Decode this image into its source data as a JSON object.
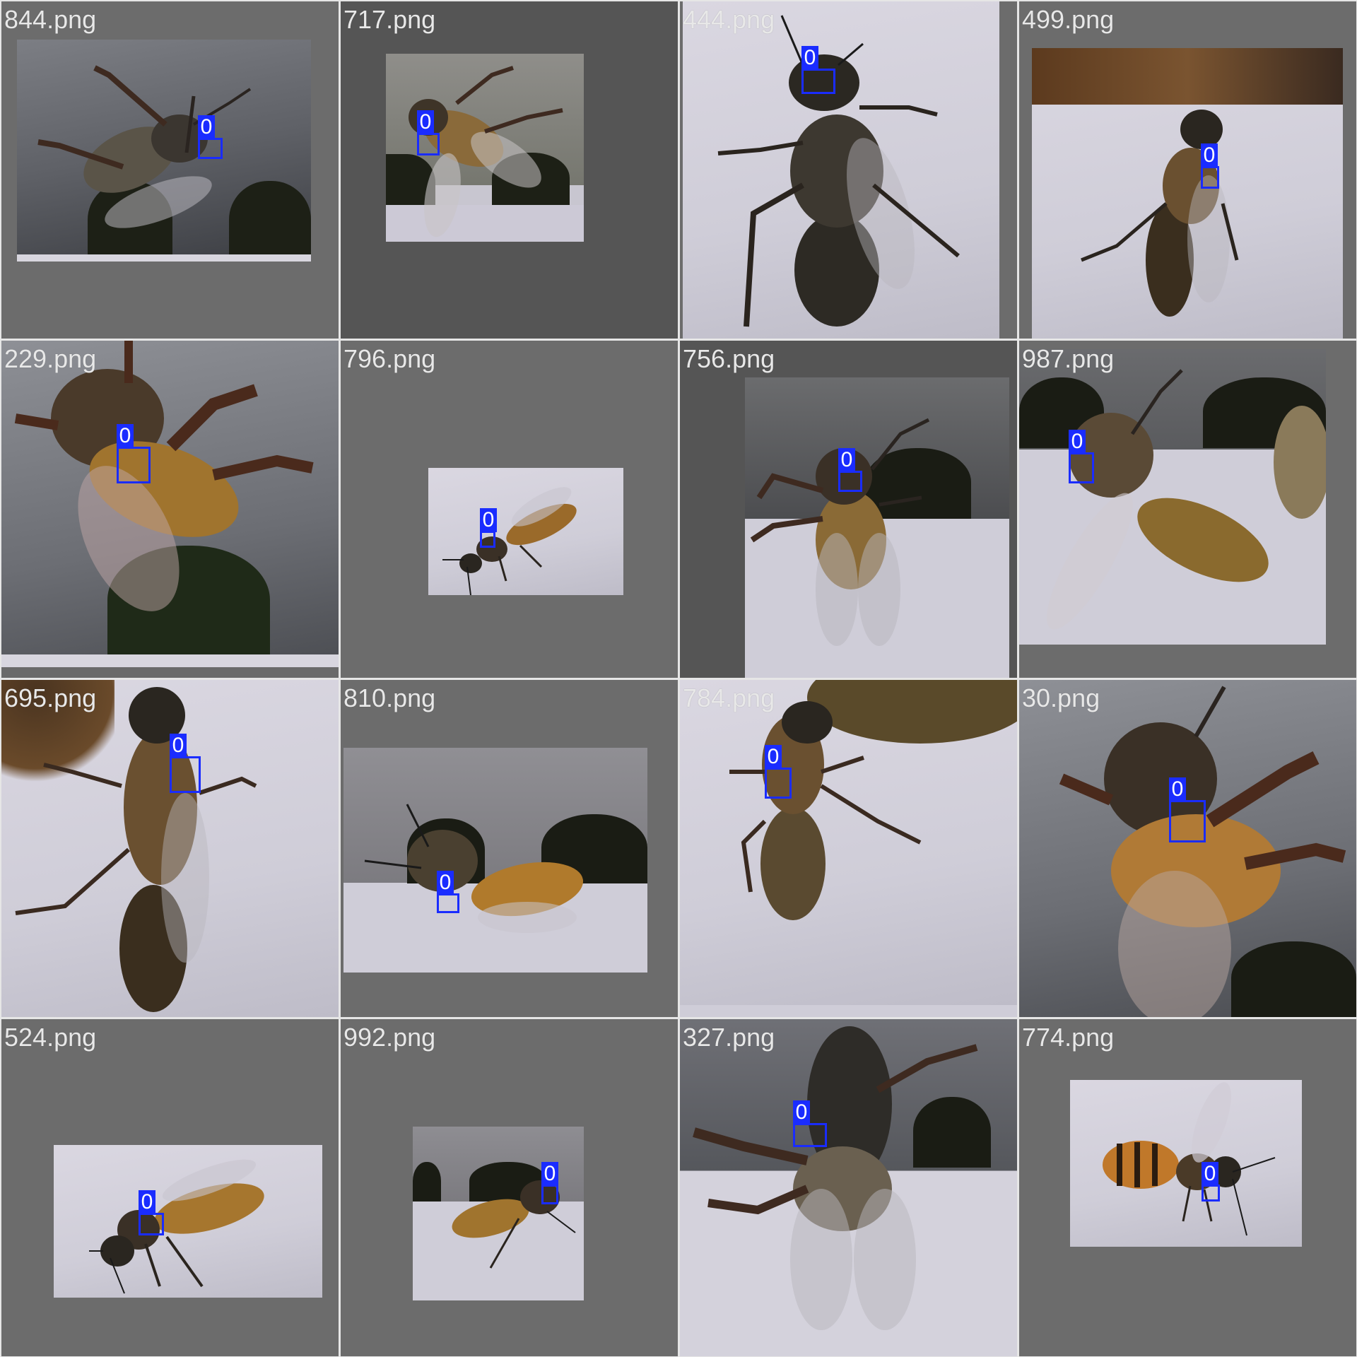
{
  "grid": {
    "tiles": [
      {
        "filename": "844.png",
        "label": "0"
      },
      {
        "filename": "717.png",
        "label": "0"
      },
      {
        "filename": "444.png",
        "label": "0"
      },
      {
        "filename": "499.png",
        "label": "0"
      },
      {
        "filename": "229.png",
        "label": "0"
      },
      {
        "filename": "796.png",
        "label": "0"
      },
      {
        "filename": "756.png",
        "label": "0"
      },
      {
        "filename": "987.png",
        "label": "0"
      },
      {
        "filename": "695.png",
        "label": "0"
      },
      {
        "filename": "810.png",
        "label": "0"
      },
      {
        "filename": "784.png",
        "label": "0"
      },
      {
        "filename": "30.png",
        "label": "0"
      },
      {
        "filename": "524.png",
        "label": "0"
      },
      {
        "filename": "992.png",
        "label": "0"
      },
      {
        "filename": "327.png",
        "label": "0"
      },
      {
        "filename": "774.png",
        "label": "0"
      }
    ]
  },
  "colors": {
    "box": "#1a2cff",
    "label_text": "#ffffff",
    "filename_text": "#e8e8e8"
  }
}
